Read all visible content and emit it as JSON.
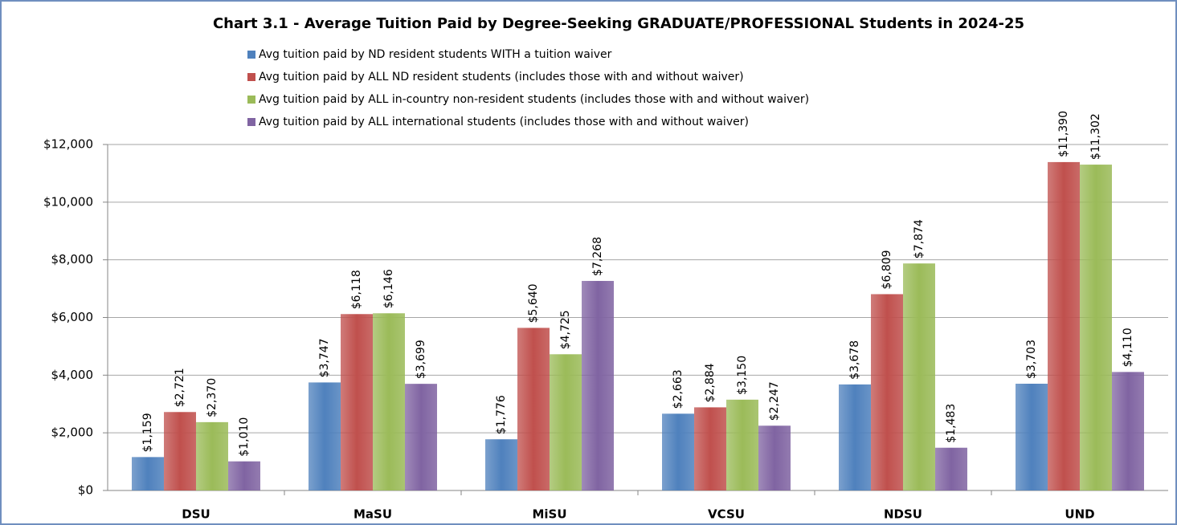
{
  "chart_data": {
    "type": "bar",
    "title": "Chart 3.1 - Average Tuition Paid by Degree-Seeking GRADUATE/PROFESSIONAL Students in 2024-25",
    "categories": [
      "DSU",
      "MaSU",
      "MiSU",
      "VCSU",
      "NDSU",
      "UND"
    ],
    "series": [
      {
        "name": "Avg tuition paid by ND resident students WITH a tuition waiver",
        "color": "#4f81bd",
        "values": [
          1159,
          3747,
          1776,
          2663,
          3678,
          3703
        ],
        "value_labels": [
          "$1,159",
          "$3,747",
          "$1,776",
          "$2,663",
          "$3,678",
          "$3,703"
        ]
      },
      {
        "name": "Avg tuition paid by ALL ND resident students (includes those with and without waiver)",
        "color": "#c0504d",
        "values": [
          2721,
          6118,
          5640,
          2884,
          6809,
          11390
        ],
        "value_labels": [
          "$2,721",
          "$6,118",
          "$5,640",
          "$2,884",
          "$6,809",
          "$11,390"
        ]
      },
      {
        "name": "Avg tuition paid by ALL in-country non-resident students (includes those with and without waiver)",
        "color": "#9bbb59",
        "values": [
          2370,
          6146,
          4725,
          3150,
          7874,
          11302
        ],
        "value_labels": [
          "$2,370",
          "$6,146",
          "$4,725",
          "$3,150",
          "$7,874",
          "$11,302"
        ]
      },
      {
        "name": "Avg tuition paid by ALL international students (includes those with and without waiver)",
        "color": "#8064a2",
        "values": [
          1010,
          3699,
          7268,
          2247,
          1483,
          4110
        ],
        "value_labels": [
          "$1,010",
          "$3,699",
          "$7,268",
          "$2,247",
          "$1,483",
          "$4,110"
        ]
      }
    ],
    "ylim": [
      0,
      12000
    ],
    "yticks": [
      {
        "value": 0,
        "label": "$0"
      },
      {
        "value": 2000,
        "label": "$2,000"
      },
      {
        "value": 4000,
        "label": "$4,000"
      },
      {
        "value": 6000,
        "label": "$6,000"
      },
      {
        "value": 8000,
        "label": "$8,000"
      },
      {
        "value": 10000,
        "label": "$10,000"
      },
      {
        "value": 12000,
        "label": "$12,000"
      }
    ],
    "grid": true,
    "legend": "top"
  }
}
